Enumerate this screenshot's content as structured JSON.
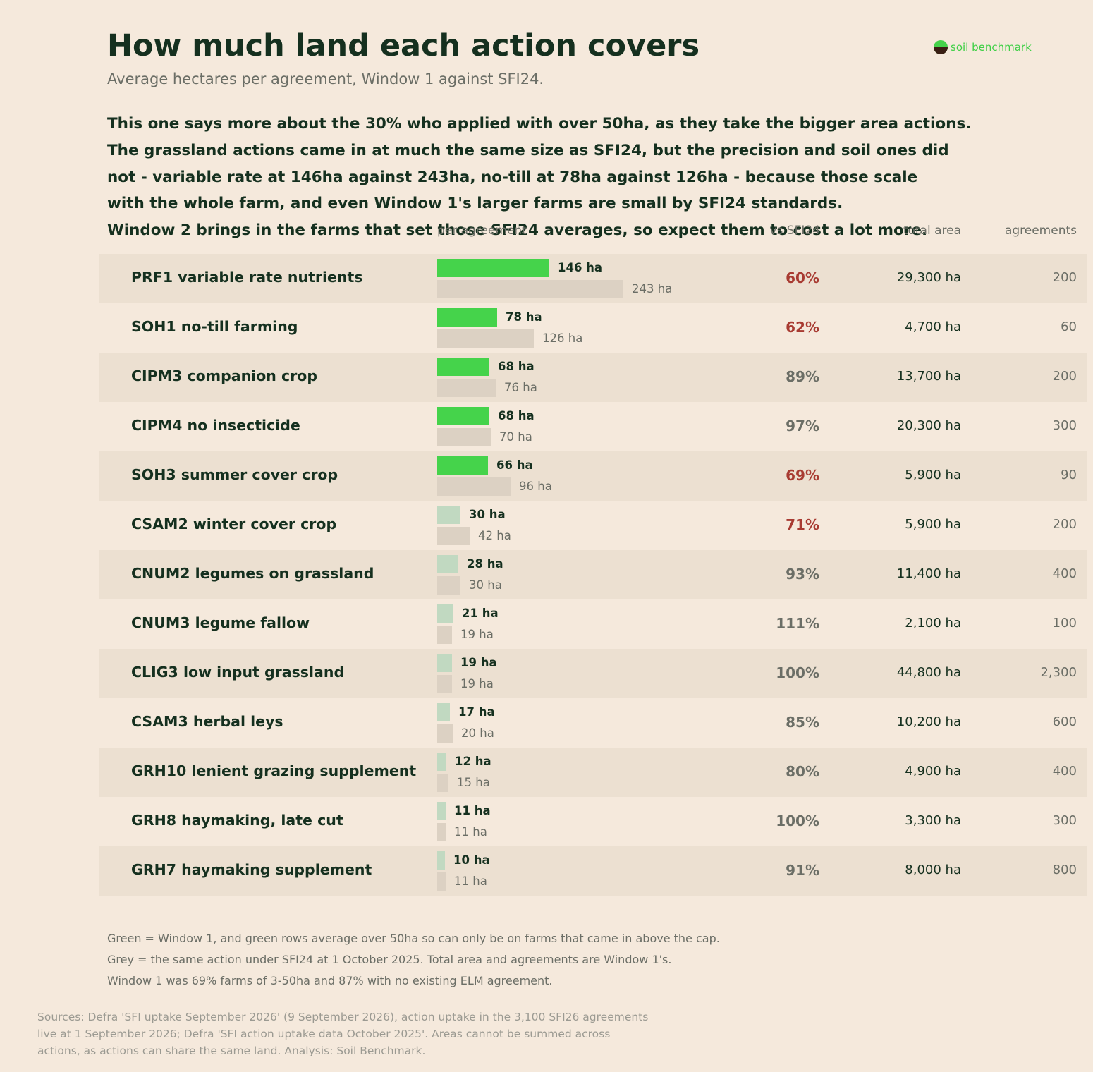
{
  "title": "How much land each action covers",
  "subtitle": "Average hectares per agreement, Window 1 against SFI24.",
  "logo_text": "soil benchmark",
  "intro": [
    "This one says more about the 30% who applied with over 50ha, as they take the bigger area actions.",
    "The grassland actions came in at much the same size as SFI24, but the precision and soil ones did",
    "not - variable rate at 146ha against 243ha, no-till at 78ha against 126ha - because those scale",
    "with the whole farm, and even Window 1's larger farms are small by SFI24 standards.",
    "Window 2 brings in the farms that set those SFI24 averages, so expect them to cost a lot more."
  ],
  "columns": {
    "per_agreement": "per agreement",
    "vs_sfi24": "vs SFI24",
    "total_area": "total area",
    "agreements": "agreements"
  },
  "colors": {
    "window1_over_50ha": "#45d34b",
    "window1_other": "#c1d9c1",
    "sfi24": "#dcd1c3",
    "below_sfi24": "#a83b32",
    "near_sfi24": "#6b6e66"
  },
  "chart_data": {
    "type": "bar",
    "orientation": "horizontal",
    "units": "ha",
    "categories": [
      "PRF1 variable rate nutrients",
      "SOH1 no-till farming",
      "CIPM3 companion crop",
      "CIPM4 no insecticide",
      "SOH3 summer cover crop",
      "CSAM2 winter cover crop",
      "CNUM2 legumes on grassland",
      "CNUM3 legume fallow",
      "CLIG3 low input grassland",
      "CSAM3 herbal leys",
      "GRH10 lenient grazing supplement",
      "GRH8 haymaking, late cut",
      "GRH7 haymaking supplement"
    ],
    "series": [
      {
        "values": [
          146,
          78,
          68,
          68,
          66,
          30,
          28,
          21,
          19,
          17,
          12,
          11,
          10
        ]
      },
      {
        "values": [
          243,
          126,
          76,
          70,
          96,
          42,
          30,
          19,
          19,
          20,
          15,
          11,
          11
        ]
      }
    ],
    "window1_labels": [
      "146 ha",
      "78 ha",
      "68 ha",
      "68 ha",
      "66 ha",
      "30 ha",
      "28 ha",
      "21 ha",
      "19 ha",
      "17 ha",
      "12 ha",
      "11 ha",
      "10 ha"
    ],
    "sfi24_labels": [
      "243 ha",
      "126 ha",
      "76 ha",
      "70 ha",
      "96 ha",
      "42 ha",
      "30 ha",
      "19 ha",
      "19 ha",
      "20 ha",
      "15 ha",
      "11 ha",
      "11 ha"
    ],
    "over_50ha": [
      true,
      true,
      true,
      true,
      true,
      false,
      false,
      false,
      false,
      false,
      false,
      false,
      false
    ],
    "vs_sfi24": [
      "60%",
      "62%",
      "89%",
      "97%",
      "69%",
      "71%",
      "93%",
      "111%",
      "100%",
      "85%",
      "80%",
      "100%",
      "91%"
    ],
    "well_below_sfi24": [
      true,
      true,
      false,
      false,
      true,
      true,
      false,
      false,
      false,
      false,
      false,
      false,
      false
    ],
    "total_area": [
      "29,300 ha",
      "4,700 ha",
      "13,700 ha",
      "20,300 ha",
      "5,900 ha",
      "5,900 ha",
      "11,400 ha",
      "2,100 ha",
      "44,800 ha",
      "10,200 ha",
      "4,900 ha",
      "3,300 ha",
      "8,000 ha"
    ],
    "agreements": [
      "200",
      "60",
      "200",
      "300",
      "90",
      "200",
      "400",
      "100",
      "2,300",
      "600",
      "400",
      "300",
      "800"
    ]
  },
  "notes": [
    "Green = Window 1, and green rows average over 50ha so can only be on farms that came in above the cap.",
    "Grey = the same action under SFI24 at 1 October 2025.   Total area and agreements are Window 1's.",
    "Window 1 was 69% farms of 3-50ha and 87% with no existing ELM agreement."
  ],
  "sources": [
    "Sources: Defra 'SFI uptake September 2026' (9 September 2026), action uptake in the 3,100 SFI26 agreements",
    "live at 1 September 2026; Defra 'SFI action uptake data October 2025'. Areas cannot be summed across",
    "actions, as actions can share the same land. Analysis: Soil Benchmark."
  ]
}
